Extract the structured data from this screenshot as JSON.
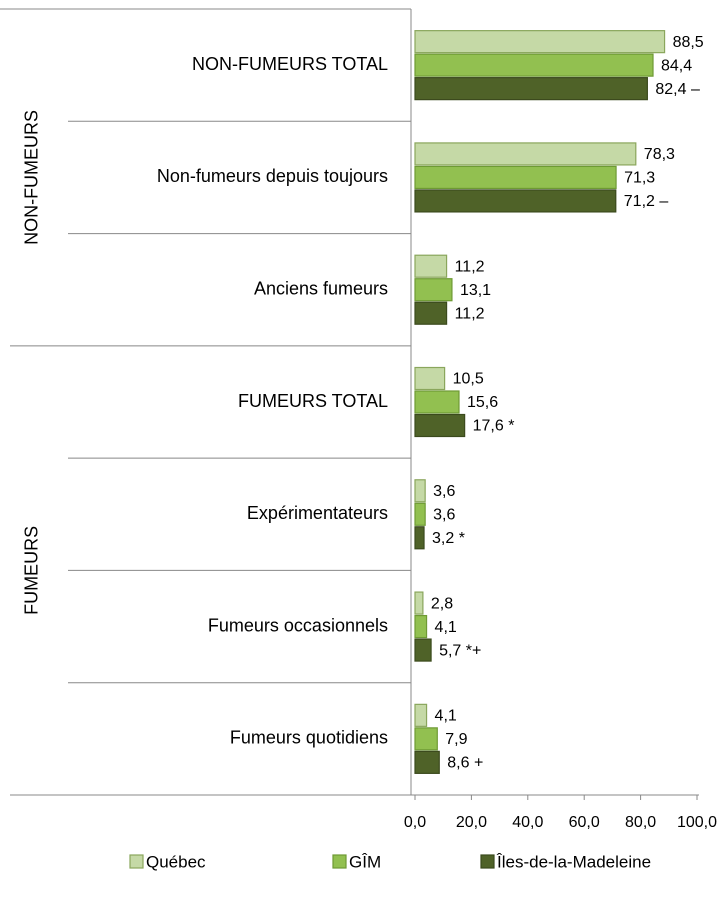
{
  "chart_data": {
    "type": "hbar",
    "groups": [
      {
        "label": "NON-FUMEURS",
        "categories": [
          "NON-FUMEURS TOTAL",
          "Non-fumeurs depuis toujours",
          "Anciens fumeurs"
        ]
      },
      {
        "label": "FUMEURS",
        "categories": [
          "FUMEURS TOTAL",
          "Expérimentateurs",
          "Fumeurs occasionnels",
          "Fumeurs quotidiens"
        ]
      }
    ],
    "series": [
      {
        "name": "Québec",
        "color": "#c5d9a6",
        "values": [
          88.5,
          78.3,
          11.2,
          10.5,
          3.6,
          2.8,
          4.1
        ],
        "value_labels": [
          "88,5",
          "78,3",
          "11,2",
          "10,5",
          "3,6",
          "2,8",
          "4,1"
        ]
      },
      {
        "name": "GÎM",
        "color": "#92c050",
        "values": [
          84.4,
          71.3,
          13.1,
          15.6,
          3.6,
          4.1,
          7.9
        ],
        "value_labels": [
          "84,4",
          "71,3",
          "13,1",
          "15,6",
          "3,6",
          "4,1",
          "7,9"
        ]
      },
      {
        "name": "Îles-de-la-Madeleine",
        "color": "#4f6228",
        "values": [
          82.4,
          71.2,
          11.2,
          17.6,
          3.2,
          5.7,
          8.6
        ],
        "value_labels": [
          "82,4 –",
          "71,2 –",
          "11,2",
          "17,6 *",
          "3,2 *",
          "5,7 *+",
          "8,6 +"
        ]
      }
    ],
    "xlim": [
      0,
      100
    ],
    "xticks": [
      {
        "value": 0,
        "label": "0,0"
      },
      {
        "value": 20,
        "label": "20,0"
      },
      {
        "value": 40,
        "label": "40,0"
      },
      {
        "value": 60,
        "label": "60,0"
      },
      {
        "value": 80,
        "label": "80,0"
      },
      {
        "value": 100,
        "label": "100,0"
      }
    ],
    "legend": "bottom"
  }
}
